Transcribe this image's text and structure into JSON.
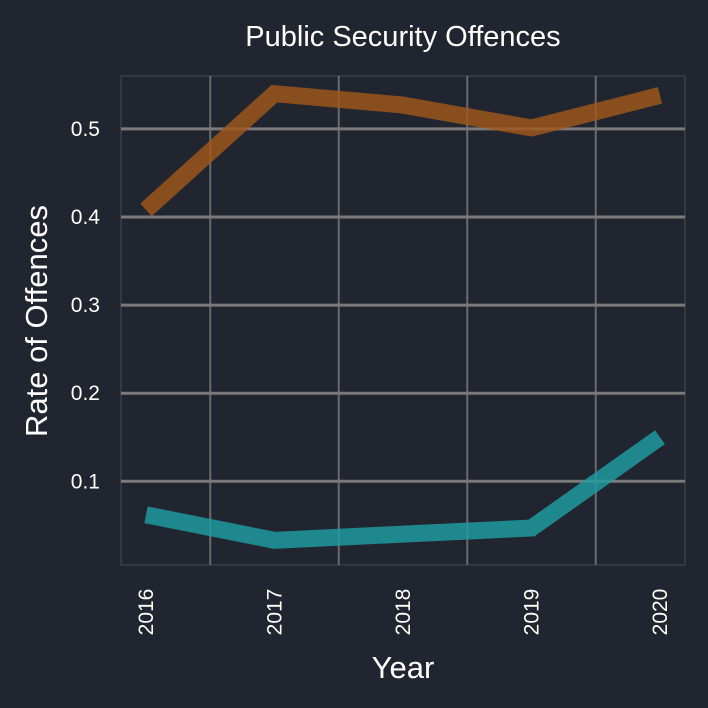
{
  "chart_data": {
    "type": "line",
    "title": "Public Security Offences",
    "xlabel": "Year",
    "ylabel": "Rate of Offences",
    "x": [
      "2016",
      "2017",
      "2018",
      "2019",
      "2020"
    ],
    "yticks": [
      "0.1",
      "0.2",
      "0.3",
      "0.4",
      "0.5"
    ],
    "ylim": [
      0.005,
      0.56
    ],
    "grid": true,
    "series": [
      {
        "values": [
          0.408,
          0.54,
          0.527,
          0.501,
          0.538
        ],
        "color": "#a0581a"
      },
      {
        "values": [
          0.062,
          0.033,
          0.04,
          0.047,
          0.15
        ],
        "color": "#1e9ea3"
      }
    ]
  }
}
